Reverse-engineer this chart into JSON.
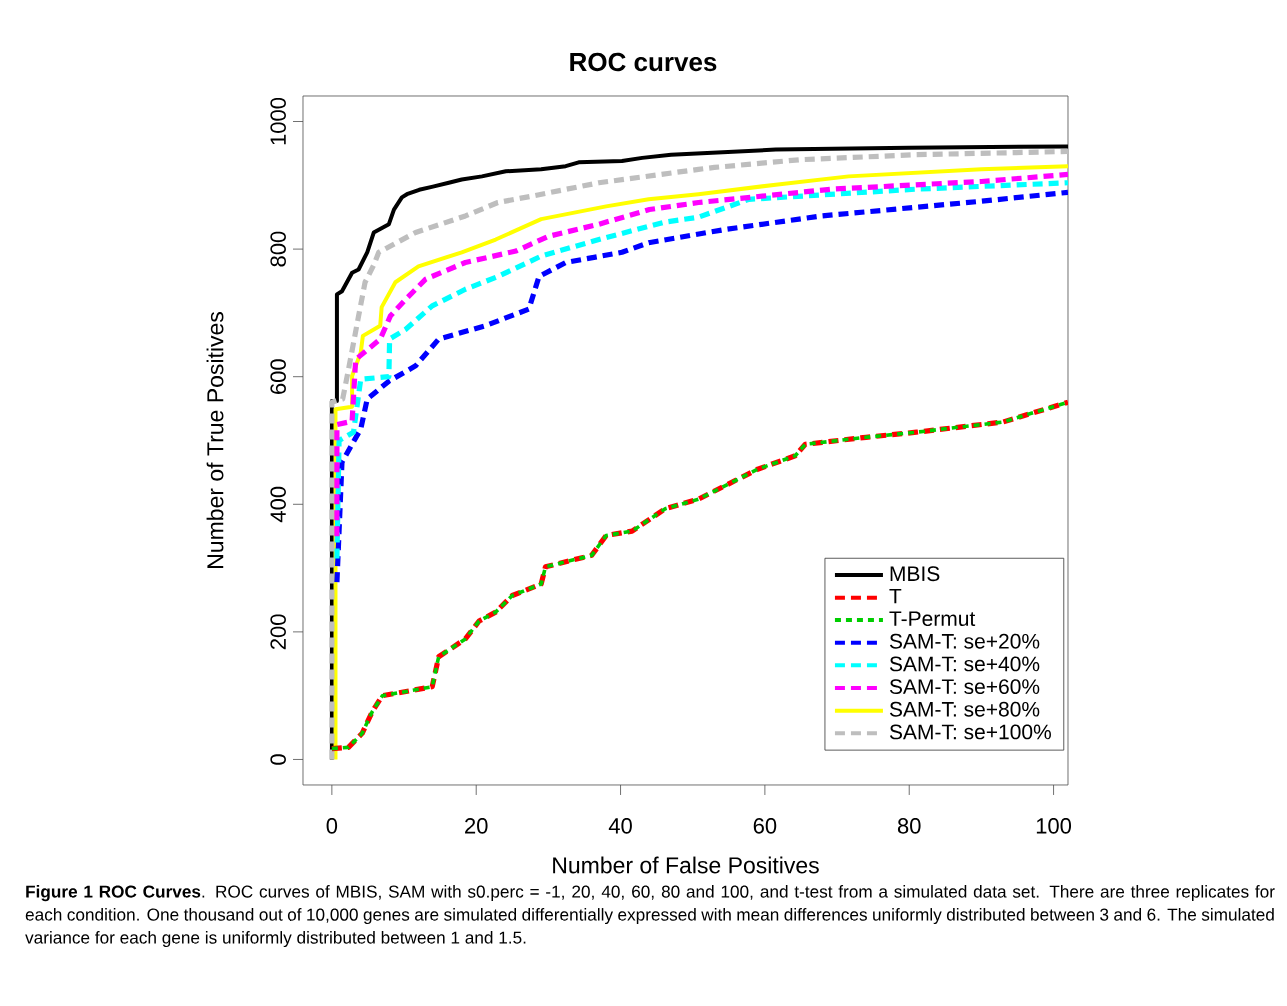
{
  "chart_data": {
    "type": "line",
    "title": "ROC curves",
    "xlabel": "Number of False Positives",
    "ylabel": "Number of True Positives",
    "xlim": [
      -4,
      102
    ],
    "ylim": [
      -40,
      1040
    ],
    "xticks": [
      0,
      20,
      40,
      60,
      80,
      100
    ],
    "yticks": [
      0,
      200,
      400,
      600,
      800,
      1000
    ],
    "legend": "bottom right",
    "annotations": [
      "**Figure 1 ROC Curves**. ROC curves of MBIS, SAM with s0.perc = -1, 20, 40, 60, 80 and 100, and t-test from a simulated data set. There are three replicates for each condition. One thousand out of 10,000 genes are simulated differentially expressed with mean differences uniformly distributed between 3 and 6. The simulated variance for each gene is uniformly distributed between 1 and 1.5."
    ],
    "series": [
      {
        "name": "MBIS",
        "color": "#000000",
        "line_style": "solid",
        "x": [
          0,
          0,
          0.7,
          0.7,
          1.4,
          2.8,
          3.7,
          4.9,
          5.8,
          7.9,
          8.6,
          9.7,
          10.4,
          12.1,
          14,
          16.2,
          18,
          20.8,
          24.1,
          29,
          32.4,
          34.2,
          40.2,
          43,
          47,
          61.5,
          80,
          102
        ],
        "values": [
          0,
          562,
          562,
          729,
          734,
          763,
          768,
          795,
          826,
          839,
          862,
          881,
          886,
          893,
          898,
          904,
          909,
          914,
          922,
          925,
          930,
          936,
          938,
          943,
          948,
          956,
          959,
          961
        ]
      },
      {
        "name": "T",
        "color": "#ff0000",
        "line_style": "dashed",
        "x": [
          0,
          2.3,
          4.2,
          5.6,
          7,
          11,
          13.9,
          14.8,
          18.5,
          20.4,
          22.7,
          25,
          29,
          29.6,
          36,
          38,
          41.6,
          46.2,
          50.8,
          59,
          64.2,
          65.6,
          74,
          81,
          93,
          102
        ],
        "values": [
          17,
          19,
          41,
          75,
          100,
          108,
          114,
          161,
          189,
          217,
          231,
          257,
          275,
          302,
          320,
          351,
          358,
          393,
          408,
          455,
          476,
          494,
          505,
          513,
          529,
          560
        ]
      },
      {
        "name": "T-Permut",
        "color": "#00cd00",
        "line_style": "dotted",
        "x": [
          0,
          2.3,
          4.2,
          5.6,
          7,
          11,
          13.9,
          14.8,
          18.5,
          20.4,
          22.7,
          25,
          29,
          29.6,
          36,
          38,
          41.6,
          46.2,
          50.8,
          59,
          64.2,
          65.6,
          74,
          81,
          93,
          102
        ],
        "values": [
          17,
          19,
          41,
          75,
          100,
          108,
          114,
          161,
          189,
          217,
          231,
          257,
          275,
          302,
          320,
          351,
          358,
          393,
          408,
          455,
          476,
          494,
          505,
          513,
          529,
          560
        ]
      },
      {
        "name": "SAM-T: se+20%",
        "color": "#0000ff",
        "line_style": "dashed",
        "x": [
          0.7,
          1.4,
          4,
          4.9,
          7.9,
          11.6,
          14.8,
          21.3,
          27.3,
          28.7,
          32.4,
          40.2,
          43.9,
          54.6,
          67.9,
          90,
          102
        ],
        "values": [
          278,
          466,
          518,
          565,
          593,
          617,
          659,
          680,
          706,
          757,
          779,
          795,
          810,
          831,
          852,
          875,
          889
        ]
      },
      {
        "name": "SAM-T: se+40%",
        "color": "#00ffff",
        "line_style": "dashed",
        "x": [
          0.7,
          1,
          3,
          4,
          7.9,
          8,
          10.2,
          13.9,
          18.5,
          23,
          29,
          37,
          46,
          50.8,
          57.8,
          81,
          102
        ],
        "values": [
          315,
          500,
          513,
          596,
          600,
          659,
          674,
          711,
          737,
          757,
          789,
          815,
          842,
          850,
          878,
          894,
          904
        ]
      },
      {
        "name": "SAM-T: se+60%",
        "color": "#ff00ff",
        "line_style": "dashed",
        "x": [
          0.7,
          0.7,
          2.8,
          3.3,
          6.7,
          8.1,
          10.2,
          13,
          18.5,
          25.5,
          30,
          37,
          44,
          50.8,
          69.3,
          90,
          102
        ],
        "values": [
          350,
          525,
          530,
          627,
          659,
          695,
          721,
          753,
          779,
          797,
          820,
          839,
          862,
          873,
          894,
          906,
          917
        ]
      },
      {
        "name": "SAM-T: se+80%",
        "color": "#ffff00",
        "line_style": "solid",
        "x": [
          0.5,
          0.5,
          2.8,
          2.8,
          4,
          4.3,
          6.7,
          6.9,
          8.8,
          12,
          18,
          22.7,
          29,
          38,
          43.9,
          50.8,
          61.5,
          71.6,
          90,
          102
        ],
        "values": [
          0,
          549,
          553,
          601,
          638,
          664,
          680,
          709,
          748,
          773,
          795,
          815,
          847,
          867,
          878,
          886,
          901,
          914,
          925,
          930
        ]
      },
      {
        "name": "SAM-T: se+100%",
        "color": "#bebebe",
        "line_style": "dashed",
        "x": [
          0,
          0,
          1.5,
          2.4,
          3.7,
          4.6,
          5.8,
          6.5,
          11.6,
          18.5,
          23,
          27.7,
          37,
          50.8,
          53,
          64.7,
          81,
          102
        ],
        "values": [
          0,
          560,
          565,
          617,
          695,
          748,
          775,
          795,
          826,
          852,
          873,
          883,
          904,
          925,
          928,
          940,
          948,
          953
        ]
      }
    ]
  }
}
